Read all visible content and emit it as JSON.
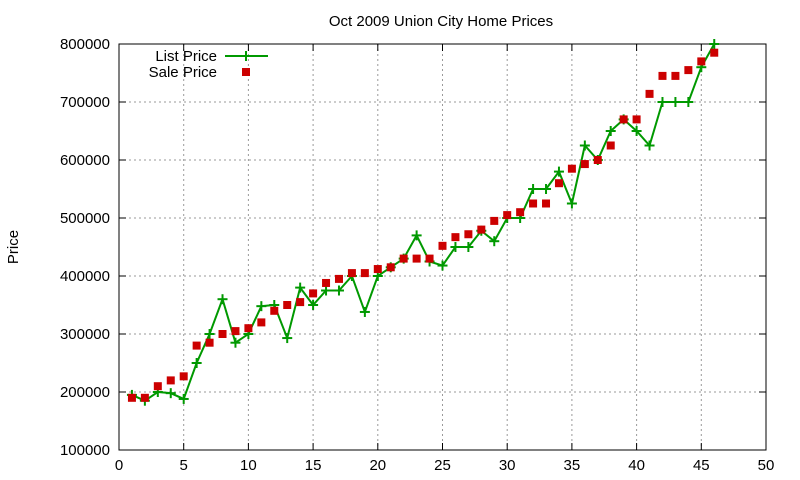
{
  "chart_data": {
    "type": "line",
    "title": "Oct 2009 Union City Home Prices",
    "xlabel": "",
    "ylabel": "Price",
    "xlim": [
      0,
      50
    ],
    "ylim": [
      100000,
      800000
    ],
    "x_ticks": [
      0,
      5,
      10,
      15,
      20,
      25,
      30,
      35,
      40,
      45,
      50
    ],
    "y_ticks": [
      100000,
      200000,
      300000,
      400000,
      500000,
      600000,
      700000,
      800000
    ],
    "grid": true,
    "legend_position": "top-left",
    "series": [
      {
        "name": "List Price",
        "style": "lines+points",
        "marker": "plus",
        "color": "#009900",
        "x": [
          1,
          2,
          3,
          4,
          5,
          6,
          7,
          8,
          9,
          10,
          11,
          12,
          13,
          14,
          15,
          16,
          17,
          18,
          19,
          20,
          21,
          22,
          23,
          24,
          25,
          26,
          27,
          28,
          29,
          30,
          31,
          32,
          33,
          34,
          35,
          36,
          37,
          38,
          39,
          40,
          41,
          42,
          43,
          44,
          45,
          46
        ],
        "y": [
          195000,
          185000,
          200000,
          198000,
          188000,
          250000,
          300000,
          360000,
          285000,
          300000,
          348000,
          350000,
          293000,
          380000,
          350000,
          375000,
          375000,
          400000,
          338000,
          400000,
          415000,
          430000,
          470000,
          425000,
          418000,
          450000,
          450000,
          478000,
          460000,
          500000,
          500000,
          550000,
          550000,
          580000,
          525000,
          625000,
          600000,
          650000,
          670000,
          650000,
          625000,
          700000,
          700000,
          700000,
          760000,
          800000
        ]
      },
      {
        "name": "Sale Price",
        "style": "points",
        "marker": "square",
        "color": "#cc0000",
        "x": [
          1,
          2,
          3,
          4,
          5,
          6,
          7,
          8,
          9,
          10,
          11,
          12,
          13,
          14,
          15,
          16,
          17,
          18,
          19,
          20,
          21,
          22,
          23,
          24,
          25,
          26,
          27,
          28,
          29,
          30,
          31,
          32,
          33,
          34,
          35,
          36,
          37,
          38,
          39,
          40,
          41,
          42,
          43,
          44,
          45,
          46
        ],
        "y": [
          190000,
          190000,
          210000,
          220000,
          227000,
          280000,
          285000,
          300000,
          305000,
          310000,
          320000,
          340000,
          350000,
          355000,
          370000,
          388000,
          395000,
          405000,
          405000,
          412000,
          415000,
          430000,
          430000,
          430000,
          452000,
          467000,
          472000,
          480000,
          495000,
          505000,
          510000,
          525000,
          525000,
          560000,
          585000,
          593000,
          600000,
          625000,
          670000,
          670000,
          714000,
          745000,
          745000,
          755000,
          770000,
          785000
        ]
      }
    ]
  }
}
